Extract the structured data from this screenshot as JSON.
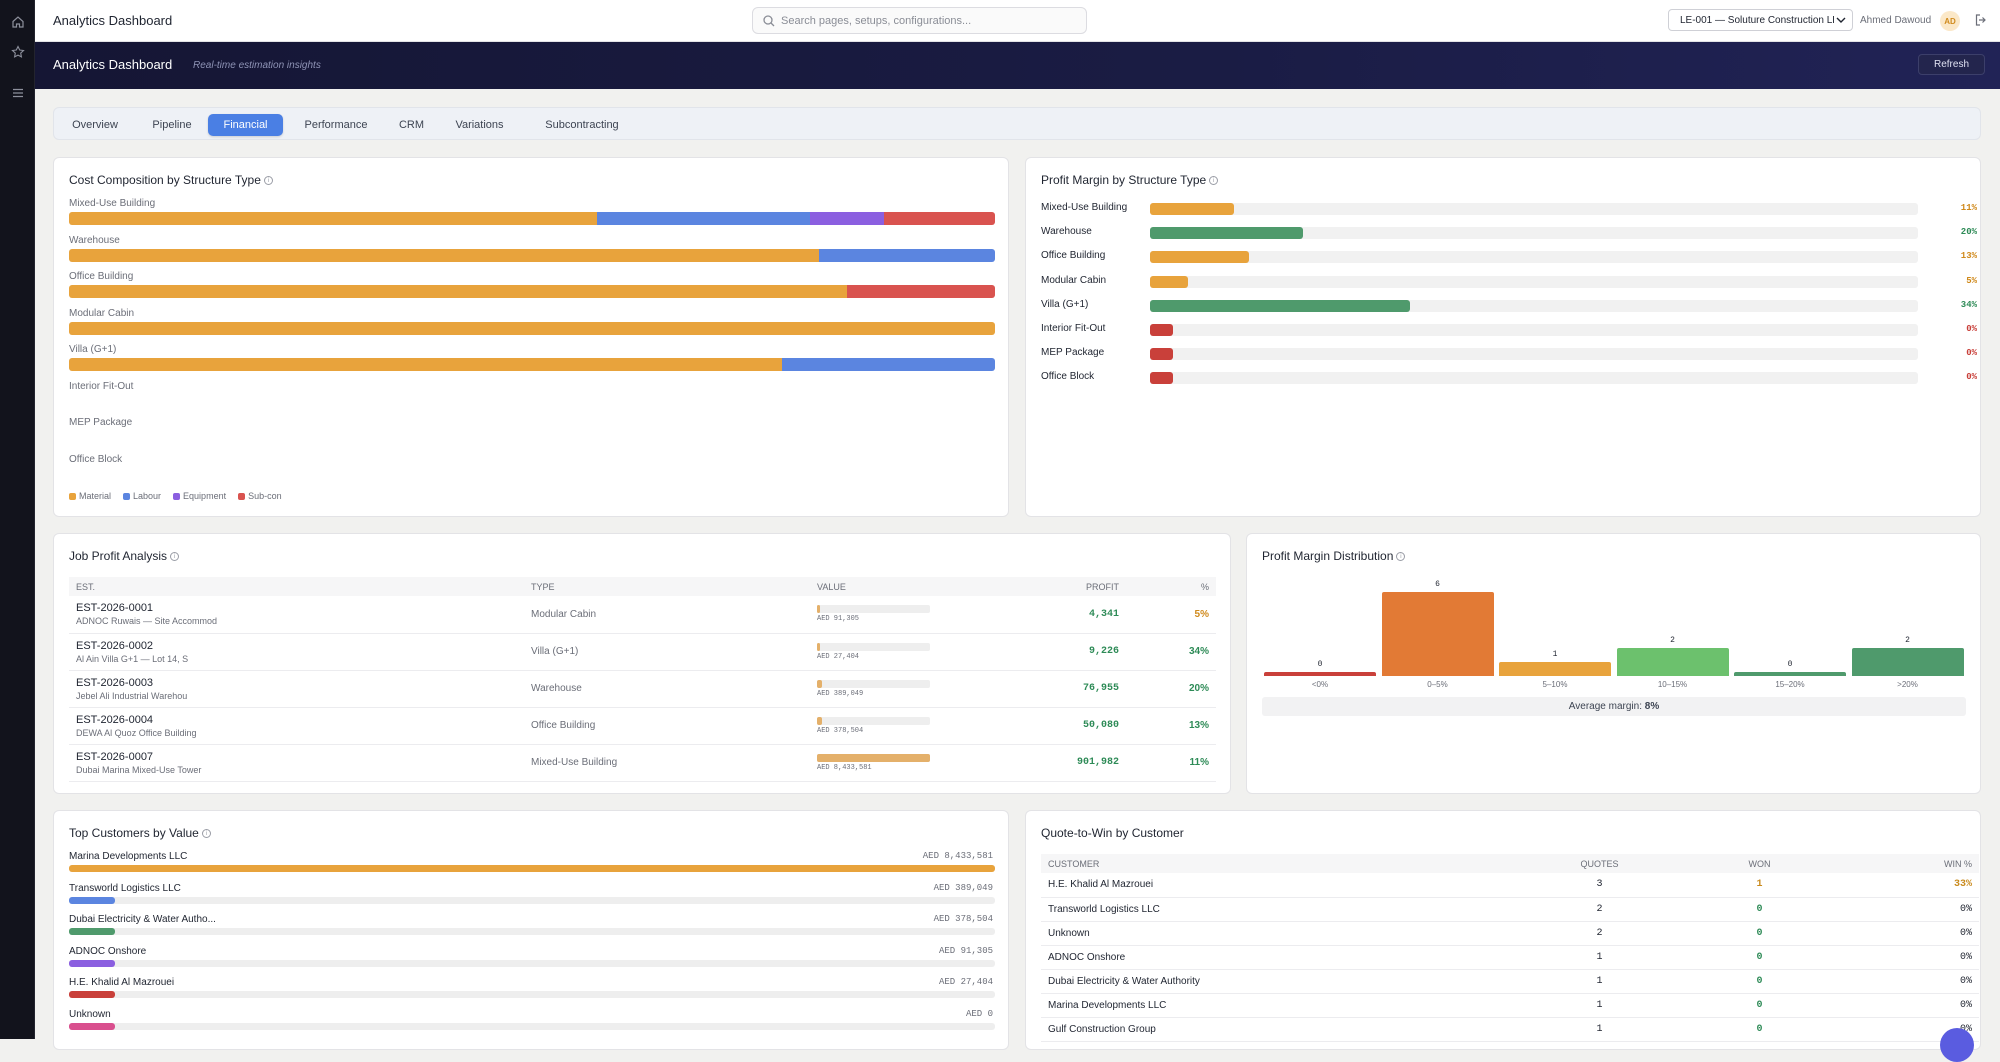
{
  "app": {
    "title": "Analytics Dashboard"
  },
  "search": {
    "placeholder": "Search pages, setups, configurations..."
  },
  "entity": {
    "value": "LE-001 — Soluture Construction LLC"
  },
  "user": {
    "name": "Ahmed Dawoud",
    "initials": "AD"
  },
  "banner": {
    "title": "Analytics Dashboard",
    "subtitle": "Real-time estimation insights",
    "refresh_label": "Refresh"
  },
  "tabs": [
    {
      "label": "Overview"
    },
    {
      "label": "Pipeline"
    },
    {
      "label": "Financial",
      "active": true
    },
    {
      "label": "Performance"
    },
    {
      "label": "CRM"
    },
    {
      "label": "Variations"
    },
    {
      "label": "Subcontracting"
    }
  ],
  "colors": {
    "material": "#e8a33c",
    "labour": "#5b85e0",
    "equipment": "#8b5fe0",
    "subcon": "#d9534f",
    "green": "#4f9a6c",
    "red": "#c9403a"
  },
  "cost_composition": {
    "title": "Cost Composition by Structure Type",
    "rows": [
      {
        "label": "Mixed-Use Building",
        "material": 57,
        "labour": 23,
        "equipment": 8,
        "subcon": 12
      },
      {
        "label": "Warehouse",
        "material": 81,
        "labour": 19,
        "equipment": 0,
        "subcon": 0
      },
      {
        "label": "Office Building",
        "material": 84,
        "labour": 0,
        "equipment": 0,
        "subcon": 16
      },
      {
        "label": "Modular Cabin",
        "material": 100,
        "labour": 0,
        "equipment": 0,
        "subcon": 0
      },
      {
        "label": "Villa (G+1)",
        "material": 77,
        "labour": 23,
        "equipment": 0,
        "subcon": 0
      },
      {
        "label": "Interior Fit-Out",
        "material": 0,
        "labour": 0,
        "equipment": 0,
        "subcon": 0
      },
      {
        "label": "MEP Package",
        "material": 0,
        "labour": 0,
        "equipment": 0,
        "subcon": 0
      },
      {
        "label": "Office Block",
        "material": 0,
        "labour": 0,
        "equipment": 0,
        "subcon": 0
      }
    ],
    "legend": [
      "Material",
      "Labour",
      "Equipment",
      "Sub-con"
    ]
  },
  "profit_margin": {
    "title": "Profit Margin by Structure Type",
    "rows": [
      {
        "label": "Mixed-Use Building",
        "value": 11,
        "text": "11%",
        "color": "#e8a33c"
      },
      {
        "label": "Warehouse",
        "value": 20,
        "text": "20%",
        "color": "#4f9a6c"
      },
      {
        "label": "Office Building",
        "value": 13,
        "text": "13%",
        "color": "#e8a33c"
      },
      {
        "label": "Modular Cabin",
        "value": 5,
        "text": "5%",
        "color": "#e8a33c"
      },
      {
        "label": "Villa (G+1)",
        "value": 34,
        "text": "34%",
        "color": "#4f9a6c"
      },
      {
        "label": "Interior Fit-Out",
        "value": 0,
        "text": "0%",
        "color": "#c9403a"
      },
      {
        "label": "MEP Package",
        "value": 0,
        "text": "0%",
        "color": "#c9403a"
      },
      {
        "label": "Office Block",
        "value": 0,
        "text": "0%",
        "color": "#c9403a"
      }
    ]
  },
  "job_profit": {
    "title": "Job Profit Analysis",
    "headers": {
      "est": "EST.",
      "type": "TYPE",
      "value": "VALUE",
      "profit": "PROFIT",
      "pct": "%"
    },
    "rows": [
      {
        "est": "EST-2026-0001",
        "sub": "ADNOC Ruwais — Site Accommod",
        "type": "Modular Cabin",
        "value_text": "AED 91,305",
        "value": 91305,
        "profit": "4,341",
        "pct": "5%",
        "pct_color": "#d08a1c"
      },
      {
        "est": "EST-2026-0002",
        "sub": "Al Ain Villa G+1 — Lot 14, S",
        "type": "Villa (G+1)",
        "value_text": "AED 27,404",
        "value": 27404,
        "profit": "9,226",
        "pct": "34%",
        "pct_color": "#2e8b57"
      },
      {
        "est": "EST-2026-0003",
        "sub": "Jebel Ali Industrial Warehou",
        "type": "Warehouse",
        "value_text": "AED 389,049",
        "value": 389049,
        "profit": "76,955",
        "pct": "20%",
        "pct_color": "#2e8b57"
      },
      {
        "est": "EST-2026-0004",
        "sub": "DEWA Al Quoz Office Building",
        "type": "Office Building",
        "value_text": "AED 378,504",
        "value": 378504,
        "profit": "50,080",
        "pct": "13%",
        "pct_color": "#2e8b57"
      },
      {
        "est": "EST-2026-0007",
        "sub": "Dubai Marina Mixed-Use Tower",
        "type": "Mixed-Use Building",
        "value_text": "AED 8,433,581",
        "value": 8433581,
        "profit": "901,982",
        "pct": "11%",
        "pct_color": "#2e8b57"
      }
    ]
  },
  "distribution": {
    "title": "Profit Margin Distribution",
    "bins": [
      {
        "label": "<0%",
        "count": 0,
        "color": "#c9403a"
      },
      {
        "label": "0–5%",
        "count": 6,
        "color": "#e27a35"
      },
      {
        "label": "5–10%",
        "count": 1,
        "color": "#e8a33c"
      },
      {
        "label": "10–15%",
        "count": 2,
        "color": "#6cc16d"
      },
      {
        "label": "15–20%",
        "count": 0,
        "color": "#4f9a6c"
      },
      {
        "label": ">20%",
        "count": 2,
        "color": "#4f9a6c"
      }
    ],
    "avg_label": "Average margin:",
    "avg_value": "8%"
  },
  "top_customers": {
    "title": "Top Customers by Value",
    "rows": [
      {
        "name": "Marina Developments LLC",
        "value_text": "AED 8,433,581",
        "value": 8433581,
        "color": "#e8a33c"
      },
      {
        "name": "Transworld Logistics LLC",
        "value_text": "AED 389,049",
        "value": 389049,
        "color": "#5b85e0"
      },
      {
        "name": "Dubai Electricity & Water Autho...",
        "value_text": "AED 378,504",
        "value": 378504,
        "color": "#4f9a6c"
      },
      {
        "name": "ADNOC Onshore",
        "value_text": "AED 91,305",
        "value": 91305,
        "color": "#8b5fe0"
      },
      {
        "name": "H.E. Khalid Al Mazrouei",
        "value_text": "AED 27,404",
        "value": 27404,
        "color": "#c9403a"
      },
      {
        "name": "Unknown",
        "value_text": "AED 0",
        "value": 0,
        "color": "#d94f8e"
      }
    ]
  },
  "quote_to_win": {
    "title": "Quote-to-Win by Customer",
    "headers": {
      "customer": "CUSTOMER",
      "quotes": "QUOTES",
      "won": "WON",
      "winpct": "WIN %"
    },
    "rows": [
      {
        "customer": "H.E. Khalid Al Mazrouei",
        "quotes": "3",
        "won": "1",
        "winpct": "33%",
        "highlight": true
      },
      {
        "customer": "Transworld Logistics LLC",
        "quotes": "2",
        "won": "0",
        "winpct": "0%"
      },
      {
        "customer": "Unknown",
        "quotes": "2",
        "won": "0",
        "winpct": "0%"
      },
      {
        "customer": "ADNOC Onshore",
        "quotes": "1",
        "won": "0",
        "winpct": "0%"
      },
      {
        "customer": "Dubai Electricity & Water Authority",
        "quotes": "1",
        "won": "0",
        "winpct": "0%"
      },
      {
        "customer": "Marina Developments LLC",
        "quotes": "1",
        "won": "0",
        "winpct": "0%"
      },
      {
        "customer": "Gulf Construction Group",
        "quotes": "1",
        "won": "0",
        "winpct": "0%"
      }
    ]
  }
}
